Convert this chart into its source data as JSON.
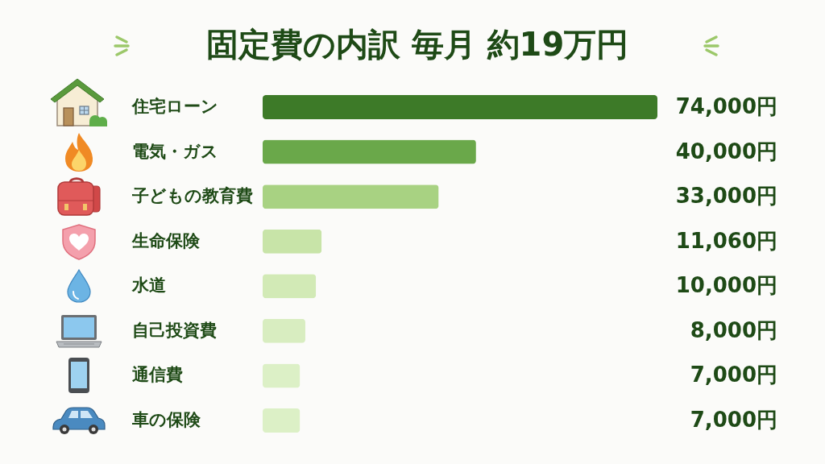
{
  "chart_data": {
    "type": "bar",
    "orientation": "horizontal",
    "title": "固定費の内訳  毎月 約19万円",
    "categories": [
      "住宅ローン",
      "電気・ガス",
      "子どもの教育費",
      "生命保険",
      "水道",
      "自己投資費",
      "通信費",
      "車の保険"
    ],
    "values": [
      74000,
      40000,
      33000,
      11060,
      10000,
      8000,
      7000,
      7000
    ],
    "colors": [
      "#3d7a28",
      "#6aa84a",
      "#a8d282",
      "#c8e4a8",
      "#d2eab6",
      "#d8edc0",
      "#dcf0c6",
      "#dcf0c6"
    ],
    "value_labels": [
      "74,000円",
      "40,000円",
      "33,000円",
      "11,060円",
      "10,000円",
      "8,000円",
      "7,000円",
      "7,000円"
    ]
  }
}
